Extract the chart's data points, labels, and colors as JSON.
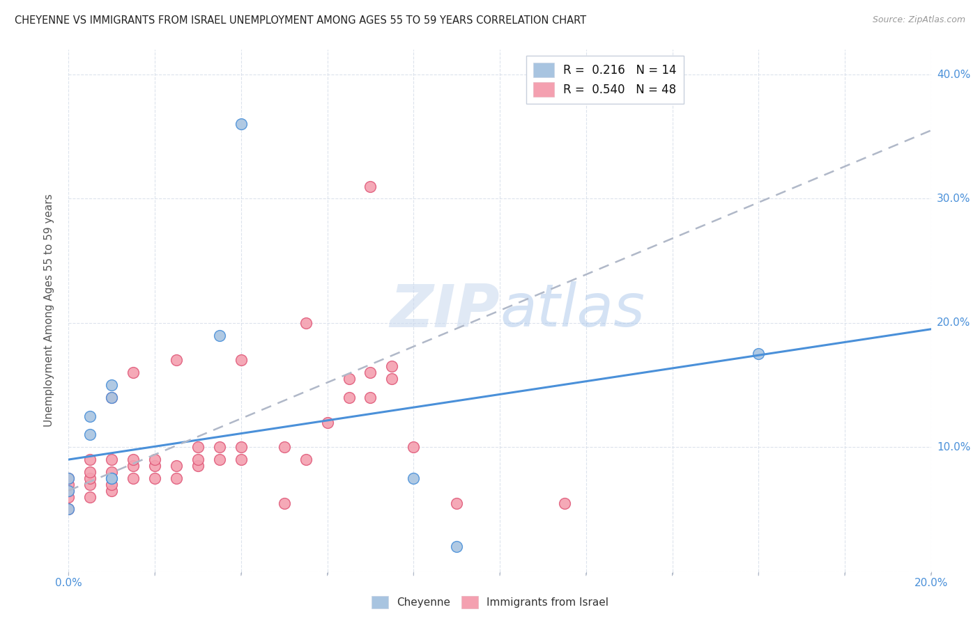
{
  "title": "CHEYENNE VS IMMIGRANTS FROM ISRAEL UNEMPLOYMENT AMONG AGES 55 TO 59 YEARS CORRELATION CHART",
  "source": "Source: ZipAtlas.com",
  "ylabel": "Unemployment Among Ages 55 to 59 years",
  "xlim": [
    0.0,
    0.2
  ],
  "ylim": [
    0.0,
    0.42
  ],
  "xticks": [
    0.0,
    0.02,
    0.04,
    0.06,
    0.08,
    0.1,
    0.12,
    0.14,
    0.16,
    0.18,
    0.2
  ],
  "yticks": [
    0.0,
    0.1,
    0.2,
    0.3,
    0.4
  ],
  "xtick_labels": [
    "0.0%",
    "",
    "",
    "",
    "",
    "",
    "",
    "",
    "",
    "",
    "20.0%"
  ],
  "ytick_labels_right": [
    "",
    "10.0%",
    "20.0%",
    "30.0%",
    "40.0%"
  ],
  "watermark_zip": "ZIP",
  "watermark_atlas": "atlas",
  "cheyenne_color": "#a8c4e0",
  "israel_color": "#f4a0b0",
  "cheyenne_line_color": "#4a90d9",
  "israel_line_color": "#e05a7a",
  "cheyenne_r": 0.216,
  "cheyenne_n": 14,
  "israel_r": 0.54,
  "israel_n": 48,
  "cheyenne_scatter_x": [
    0.0,
    0.0,
    0.0,
    0.005,
    0.005,
    0.01,
    0.01,
    0.01,
    0.01,
    0.035,
    0.04,
    0.08,
    0.09,
    0.16
  ],
  "cheyenne_scatter_y": [
    0.05,
    0.065,
    0.075,
    0.11,
    0.125,
    0.14,
    0.15,
    0.075,
    0.075,
    0.19,
    0.36,
    0.075,
    0.02,
    0.175
  ],
  "israel_scatter_x": [
    0.0,
    0.0,
    0.0,
    0.0,
    0.0,
    0.005,
    0.005,
    0.005,
    0.005,
    0.005,
    0.01,
    0.01,
    0.01,
    0.01,
    0.01,
    0.015,
    0.015,
    0.015,
    0.015,
    0.02,
    0.02,
    0.02,
    0.025,
    0.025,
    0.025,
    0.03,
    0.03,
    0.03,
    0.035,
    0.035,
    0.04,
    0.04,
    0.04,
    0.05,
    0.05,
    0.055,
    0.055,
    0.06,
    0.065,
    0.065,
    0.07,
    0.07,
    0.07,
    0.075,
    0.075,
    0.08,
    0.09,
    0.115
  ],
  "israel_scatter_y": [
    0.05,
    0.06,
    0.065,
    0.07,
    0.075,
    0.06,
    0.07,
    0.075,
    0.08,
    0.09,
    0.065,
    0.07,
    0.08,
    0.09,
    0.14,
    0.075,
    0.085,
    0.09,
    0.16,
    0.075,
    0.085,
    0.09,
    0.075,
    0.085,
    0.17,
    0.085,
    0.09,
    0.1,
    0.09,
    0.1,
    0.09,
    0.1,
    0.17,
    0.1,
    0.055,
    0.09,
    0.2,
    0.12,
    0.14,
    0.155,
    0.14,
    0.16,
    0.31,
    0.155,
    0.165,
    0.1,
    0.055,
    0.055
  ],
  "cheyenne_line_x": [
    0.0,
    0.2
  ],
  "cheyenne_line_y": [
    0.09,
    0.195
  ],
  "israel_line_x": [
    0.0,
    0.2
  ],
  "israel_line_y": [
    0.065,
    0.355
  ],
  "background_color": "#ffffff",
  "grid_color": "#d4dce8",
  "tick_color": "#4a90d9"
}
